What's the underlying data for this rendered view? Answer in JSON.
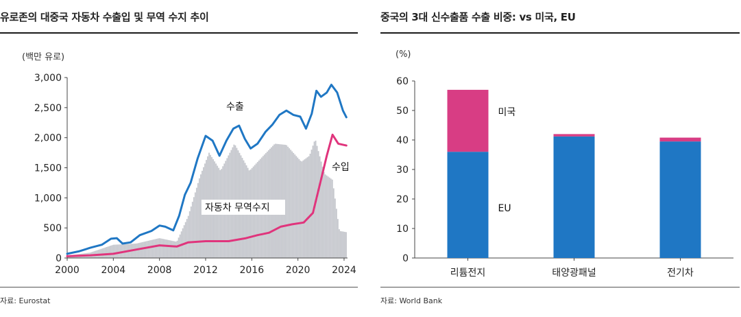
{
  "left_panel": {
    "title": "유로존의 대중국 자동차 수출입 및 무역 수지 추이",
    "unit_label": "(백만 유로)",
    "source": "자료: Eurostat"
  },
  "right_panel": {
    "title": "중국의 3대 신수출품 수출 비중: vs 미국, EU",
    "unit_label": "(%)",
    "source": "자료: World Bank"
  },
  "chart_data": [
    {
      "type": "line",
      "title": "유로존의 대중국 자동차 수출입 및 무역 수지 추이",
      "ylabel": "(백만 유로)",
      "xlim": [
        2000,
        2024.3
      ],
      "ylim": [
        0,
        3000
      ],
      "x_ticks": [
        "2000",
        "2004",
        "2008",
        "2012",
        "2016",
        "2020",
        "2024"
      ],
      "y_ticks": [
        "0",
        "500",
        "1,000",
        "1,500",
        "2,000",
        "2,500",
        "3,000"
      ],
      "grid": false,
      "colors": {
        "export": "#1f77c4",
        "import": "#e0347c",
        "balance": "#c4c6cc"
      },
      "series": [
        {
          "name": "수출",
          "x": [
            2000,
            2001,
            2002,
            2003,
            2003.8,
            2004.3,
            2004.8,
            2005.5,
            2006.3,
            2007.3,
            2008,
            2008.5,
            2009.2,
            2009.7,
            2010.2,
            2010.7,
            2011.3,
            2012,
            2012.6,
            2013.2,
            2013.8,
            2014.4,
            2014.9,
            2015.4,
            2015.9,
            2016.5,
            2017.2,
            2017.8,
            2018.4,
            2019,
            2019.6,
            2020.2,
            2020.7,
            2021.2,
            2021.6,
            2022,
            2022.5,
            2022.9,
            2023.4,
            2023.9,
            2024.2
          ],
          "y": [
            70,
            110,
            170,
            220,
            320,
            330,
            240,
            260,
            380,
            450,
            540,
            520,
            460,
            700,
            1050,
            1250,
            1650,
            2030,
            1950,
            1700,
            1950,
            2150,
            2200,
            1980,
            1820,
            1900,
            2100,
            2220,
            2380,
            2450,
            2380,
            2350,
            2150,
            2400,
            2780,
            2680,
            2750,
            2880,
            2750,
            2450,
            2340
          ]
        },
        {
          "name": "수입",
          "x": [
            2000,
            2002,
            2004,
            2006,
            2008,
            2009.5,
            2010.5,
            2012,
            2014,
            2015.5,
            2016.5,
            2017.5,
            2018.5,
            2019.5,
            2020.5,
            2021.3,
            2022,
            2022.5,
            2023,
            2023.5,
            2024.2
          ],
          "y": [
            30,
            45,
            70,
            140,
            210,
            190,
            260,
            280,
            280,
            330,
            380,
            420,
            520,
            560,
            590,
            750,
            1300,
            1700,
            2050,
            1900,
            1870
          ]
        },
        {
          "name": "자동차 무역수지",
          "x": [
            2000,
            2002,
            2004,
            2006,
            2008,
            2009.5,
            2010.5,
            2011.5,
            2012.3,
            2013.3,
            2014.5,
            2015.8,
            2017,
            2018,
            2019,
            2020.3,
            2021,
            2021.5,
            2022.3,
            2023,
            2023.6,
            2024.2
          ],
          "y": [
            40,
            90,
            220,
            240,
            330,
            270,
            700,
            1350,
            1750,
            1450,
            1900,
            1450,
            1700,
            1900,
            1880,
            1600,
            1700,
            1980,
            1400,
            1300,
            450,
            430
          ]
        }
      ]
    },
    {
      "type": "bar",
      "title": "중국의 3대 신수출품 수출 비중: vs 미국, EU",
      "ylabel": "(%)",
      "categories": [
        "리튬전지",
        "태양광패널",
        "전기차"
      ],
      "ylim": [
        0,
        60
      ],
      "y_ticks": [
        "0",
        "10",
        "20",
        "30",
        "40",
        "50",
        "60"
      ],
      "stacked": true,
      "grid": false,
      "series": [
        {
          "name": "EU",
          "values": [
            36,
            41.2,
            39.5
          ],
          "color": "#1f77c4"
        },
        {
          "name": "미국",
          "values": [
            21,
            0.8,
            1.3
          ],
          "color": "#d83d84"
        }
      ]
    }
  ]
}
